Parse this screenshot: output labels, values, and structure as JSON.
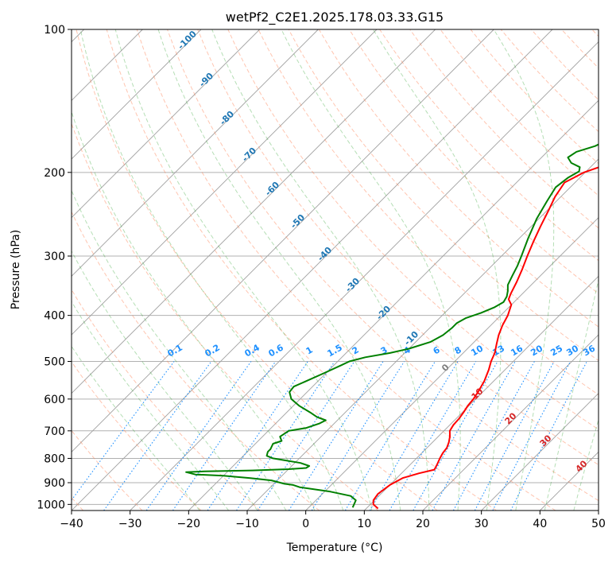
{
  "chart_data": {
    "type": "skew-t log-p",
    "title": "wetPf2_C2E1.2025.178.03.33.G15",
    "xlabel": "Temperature (°C)",
    "ylabel": "Pressure (hPa)",
    "xlim": [
      -40,
      50
    ],
    "ylim_hpa": [
      1030,
      100
    ],
    "pressure_scale": "log",
    "grid": true,
    "x_ticks": [
      "−40",
      "−30",
      "−20",
      "−10",
      "0",
      "10",
      "20",
      "30",
      "40",
      "50"
    ],
    "y_ticks": [
      "1000",
      "900",
      "800",
      "700",
      "600",
      "500",
      "400",
      "300",
      "200",
      "100"
    ],
    "colors": {
      "temperature": "#ff0000",
      "dewpoint": "#008000",
      "dry_adiabats": "#ff7f50",
      "moist_adiabats": "#2ca02c",
      "mixing_ratio": "#1e90ff",
      "isotherms": "#808080",
      "special_adiabat": "#d2b48c"
    },
    "series": [
      {
        "key": "temperature",
        "points": [
          [
            12,
            1020
          ],
          [
            10.5,
            1000
          ],
          [
            9.8,
            980
          ],
          [
            9.5,
            950
          ],
          [
            10,
            910
          ],
          [
            11,
            880
          ],
          [
            13,
            860
          ],
          [
            15,
            845
          ],
          [
            14.6,
            825
          ],
          [
            14,
            800
          ],
          [
            13.6,
            780
          ],
          [
            13.4,
            760
          ],
          [
            12.8,
            740
          ],
          [
            12,
            720
          ],
          [
            11,
            700
          ],
          [
            10.6,
            680
          ],
          [
            10.5,
            660
          ],
          [
            10.2,
            640
          ],
          [
            9.8,
            620
          ],
          [
            9.6,
            600
          ],
          [
            9.2,
            580
          ],
          [
            8.4,
            550
          ],
          [
            7.2,
            520
          ],
          [
            6.2,
            500
          ],
          [
            5.4,
            480
          ],
          [
            4.2,
            460
          ],
          [
            3,
            440
          ],
          [
            2,
            420
          ],
          [
            1.2,
            400
          ],
          [
            0,
            380
          ],
          [
            -1.4,
            370
          ],
          [
            -2,
            360
          ],
          [
            -3,
            340
          ],
          [
            -4.2,
            320
          ],
          [
            -5.6,
            300
          ],
          [
            -7,
            280
          ],
          [
            -8.4,
            260
          ],
          [
            -9.8,
            240
          ],
          [
            -11,
            225
          ],
          [
            -11.8,
            210
          ],
          [
            -11,
            205
          ],
          [
            -10.2,
            200
          ],
          [
            -8.5,
            195
          ],
          [
            -5,
            190
          ],
          [
            -2,
            185
          ],
          [
            1,
            178
          ],
          [
            3,
            172
          ],
          [
            5,
            165
          ],
          [
            6,
            158
          ],
          [
            7.5,
            150
          ],
          [
            9,
            143
          ],
          [
            11.5,
            136
          ],
          [
            14,
            130
          ],
          [
            16.5,
            125
          ],
          [
            19,
            120
          ],
          [
            20.8,
            115
          ],
          [
            21.7,
            110
          ],
          [
            22,
            105
          ],
          [
            22.3,
            100
          ]
        ]
      },
      {
        "key": "dewpoint",
        "points": [
          [
            7.5,
            1015
          ],
          [
            7.2,
            1000
          ],
          [
            6.8,
            980
          ],
          [
            5.2,
            960
          ],
          [
            1,
            940
          ],
          [
            -5,
            920
          ],
          [
            -6.5,
            910
          ],
          [
            -8.2,
            905
          ],
          [
            -11,
            890
          ],
          [
            -15,
            880
          ],
          [
            -20,
            870
          ],
          [
            -25,
            865
          ],
          [
            -27,
            855
          ],
          [
            -24,
            852
          ],
          [
            -16,
            848
          ],
          [
            -10,
            843
          ],
          [
            -7.2,
            838
          ],
          [
            -7,
            830
          ],
          [
            -9,
            818
          ],
          [
            -12,
            808
          ],
          [
            -14.5,
            800
          ],
          [
            -16,
            790
          ],
          [
            -16.5,
            775
          ],
          [
            -16.5,
            765
          ],
          [
            -17,
            745
          ],
          [
            -16,
            735
          ],
          [
            -17,
            720
          ],
          [
            -16.5,
            700
          ],
          [
            -14,
            690
          ],
          [
            -12.5,
            675
          ],
          [
            -12,
            665
          ],
          [
            -14,
            655
          ],
          [
            -16,
            640
          ],
          [
            -19,
            620
          ],
          [
            -21.5,
            600
          ],
          [
            -23,
            580
          ],
          [
            -23.2,
            565
          ],
          [
            -22,
            550
          ],
          [
            -20.4,
            530
          ],
          [
            -18.8,
            510
          ],
          [
            -18,
            500
          ],
          [
            -16,
            490
          ],
          [
            -12.5,
            480
          ],
          [
            -10,
            470
          ],
          [
            -7.5,
            455
          ],
          [
            -6.5,
            440
          ],
          [
            -6.2,
            425
          ],
          [
            -6.2,
            415
          ],
          [
            -5.5,
            405
          ],
          [
            -3.8,
            395
          ],
          [
            -2.5,
            385
          ],
          [
            -1.8,
            375
          ],
          [
            -2.2,
            365
          ],
          [
            -3,
            355
          ],
          [
            -4,
            345
          ],
          [
            -4.8,
            330
          ],
          [
            -5.6,
            315
          ],
          [
            -6.6,
            300
          ],
          [
            -8.5,
            275
          ],
          [
            -10.4,
            250
          ],
          [
            -11.6,
            230
          ],
          [
            -12.5,
            215
          ],
          [
            -12,
            205
          ],
          [
            -11.2,
            199
          ],
          [
            -11.8,
            195
          ],
          [
            -14,
            191
          ],
          [
            -15.5,
            186
          ],
          [
            -15,
            181
          ],
          [
            -12.8,
            176
          ],
          [
            -11.5,
            170
          ],
          [
            -10,
            162
          ],
          [
            -9,
            155
          ],
          [
            -7.6,
            148
          ],
          [
            -6.6,
            140
          ],
          [
            -5.6,
            134
          ],
          [
            -4.8,
            128
          ],
          [
            -3.2,
            122
          ],
          [
            -1.3,
            117
          ],
          [
            0.8,
            112
          ],
          [
            3,
            106
          ],
          [
            4.3,
            102
          ],
          [
            5,
            100
          ]
        ]
      }
    ],
    "mixing_ratio_labels": [
      "0.1",
      "0.2",
      "0.4",
      "0.6",
      "1",
      "1.5",
      "2",
      "3",
      "4",
      "6",
      "8",
      "10",
      "13",
      "16",
      "20",
      "25",
      "30",
      "36"
    ],
    "dry_adiabat_labels": [
      "-100",
      "-90",
      "-80",
      "-70",
      "-60",
      "-50",
      "-40",
      "-30",
      "-20",
      "-10"
    ],
    "moist_adiabat_labels": [
      "0",
      "10",
      "20",
      "30",
      "40"
    ]
  }
}
